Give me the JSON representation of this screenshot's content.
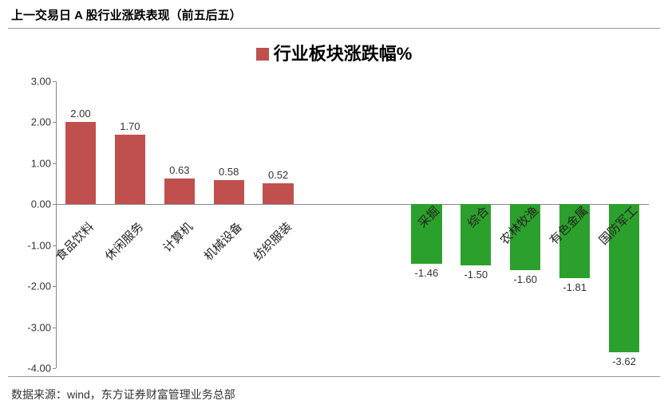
{
  "header": {
    "title": "上一交易日 A 股行业涨跌表现（前五后五）",
    "title_fontsize": 15,
    "title_color": "#222222",
    "border_color": "#999999"
  },
  "chart": {
    "type": "bar",
    "legend_label": "行业板块涨跌幅%",
    "legend_fontsize": 22,
    "legend_swatch_color": "#c0504d",
    "background_color": "#ffffff",
    "positive_color": "#c0504d",
    "negative_color": "#2ca02c",
    "axis_color": "#888888",
    "text_color": "#333333",
    "ylim": [
      -4.0,
      3.0
    ],
    "ytick_step": 1.0,
    "yticks": [
      "3.00",
      "2.00",
      "1.00",
      "0.00",
      "-1.00",
      "-2.00",
      "-3.00",
      "-4.00"
    ],
    "ytick_values": [
      3.0,
      2.0,
      1.0,
      0.0,
      -1.0,
      -2.0,
      -3.0,
      -4.0
    ],
    "value_decimals": 2,
    "categories_positive": [
      "食品饮料",
      "休闲服务",
      "计算机",
      "机械设备",
      "纺织服装"
    ],
    "values_positive": [
      2.0,
      1.7,
      0.63,
      0.58,
      0.52
    ],
    "categories_negative": [
      "采掘",
      "综合",
      "农林牧渔",
      "有色金属",
      "国防军工"
    ],
    "values_negative": [
      -1.46,
      -1.5,
      -1.6,
      -1.81,
      -3.62
    ],
    "gap_slots": 2,
    "bar_width_ratio": 0.62,
    "label_fontsize": 13,
    "category_fontsize": 15,
    "category_rotation_deg": -45
  },
  "footer": {
    "text": "数据来源：wind，东方证券财富管理业务总部",
    "fontsize": 14
  }
}
